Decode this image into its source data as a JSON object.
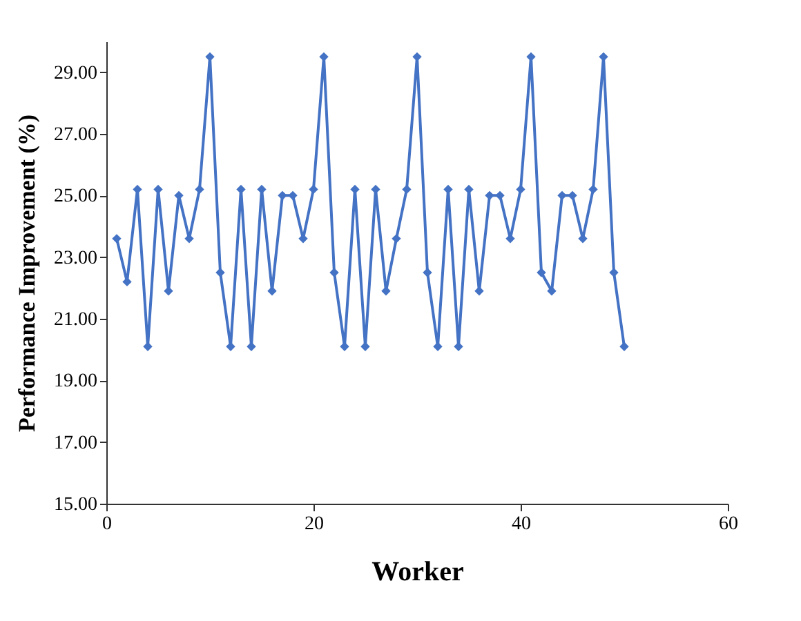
{
  "chart_data": {
    "type": "line",
    "xlabel": "Worker",
    "ylabel": "Performance Improvement (%)",
    "x": [
      1,
      2,
      3,
      4,
      5,
      6,
      7,
      8,
      9,
      10,
      11,
      12,
      13,
      14,
      15,
      16,
      17,
      18,
      19,
      20,
      21,
      22,
      23,
      24,
      25,
      26,
      27,
      28,
      29,
      30,
      31,
      32,
      33,
      34,
      35,
      36,
      37,
      38,
      39,
      40,
      41,
      42,
      43,
      44,
      45,
      46,
      47,
      48,
      49,
      50
    ],
    "series": [
      {
        "color": "#4472c4",
        "values": [
          23.6,
          22.2,
          25.2,
          20.1,
          25.2,
          21.9,
          25.0,
          23.6,
          25.2,
          29.5,
          22.5,
          20.1,
          25.2,
          20.1,
          25.2,
          21.9,
          25.0,
          25.0,
          23.6,
          25.2,
          29.5,
          22.5,
          20.1,
          25.2,
          20.1,
          25.2,
          21.9,
          23.6,
          25.2,
          29.5,
          22.5,
          20.1,
          25.2,
          20.1,
          25.2,
          21.9,
          25.0,
          25.0,
          23.6,
          25.2,
          29.5,
          22.5,
          21.9,
          25.0,
          25.0,
          23.6,
          25.2,
          29.5,
          22.5,
          20.1
        ]
      }
    ],
    "xlim": [
      0,
      60
    ],
    "xticks": [
      0,
      20,
      40,
      60
    ],
    "ylim": [
      15,
      30
    ],
    "yticks": [
      {
        "value": 15,
        "label": "15.00"
      },
      {
        "value": 17,
        "label": "17.00"
      },
      {
        "value": 19,
        "label": "19.00"
      },
      {
        "value": 21,
        "label": "21.00"
      },
      {
        "value": 23,
        "label": "23.00"
      },
      {
        "value": 25,
        "label": "25.00"
      },
      {
        "value": 27,
        "label": "27.00"
      },
      {
        "value": 29,
        "label": "29.00"
      }
    ],
    "grid": false,
    "marker": "diamond",
    "line_style": "solid"
  }
}
